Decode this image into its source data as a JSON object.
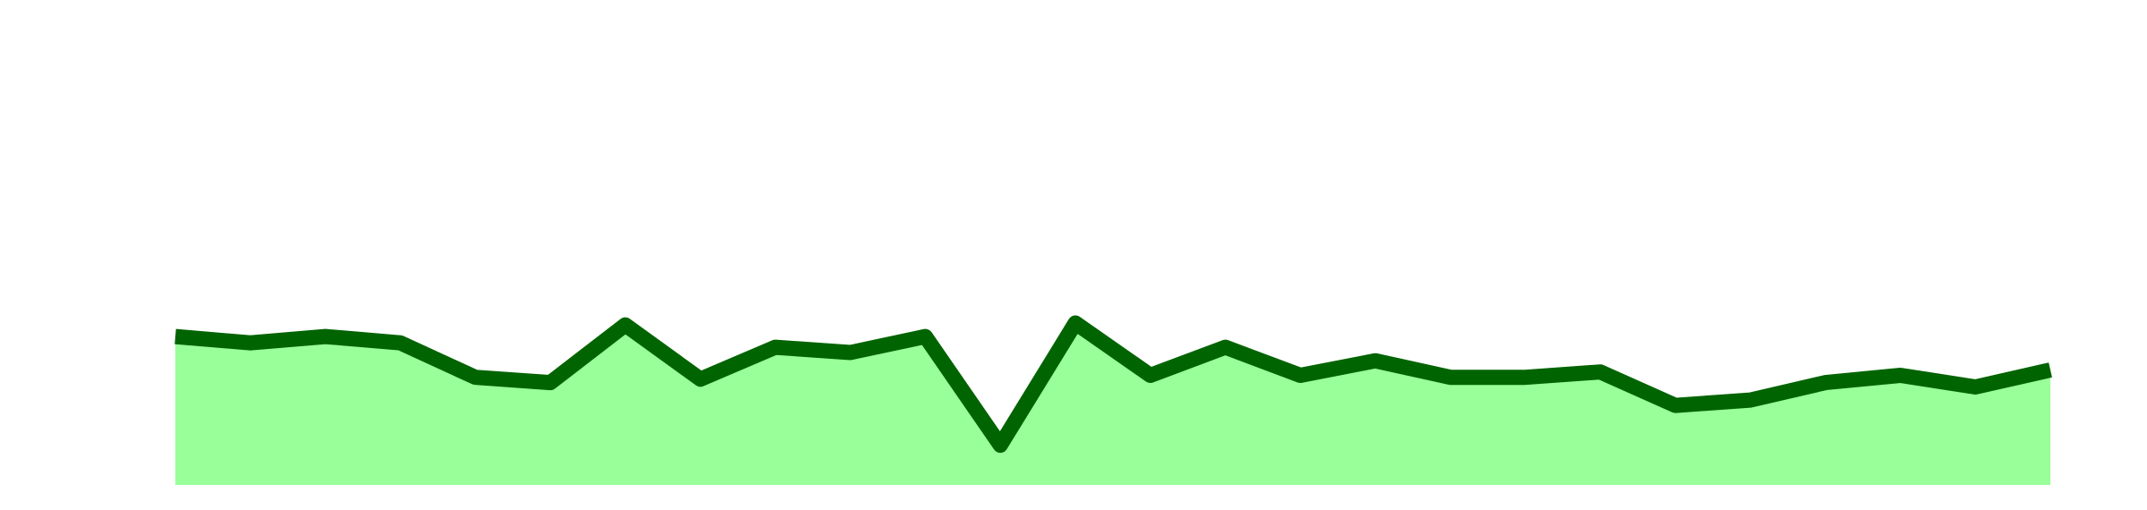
{
  "colors": {
    "background": "#ffffff",
    "area_fill": "#99ff99",
    "line": "#006400"
  },
  "chart_data": {
    "type": "area",
    "title": "",
    "xlabel": "",
    "ylabel": "",
    "grid": false,
    "legend": "none",
    "axes_visible": false,
    "x": [
      0,
      1,
      2,
      3,
      4,
      5,
      6,
      7,
      8,
      9,
      10,
      11,
      12,
      13,
      14,
      15,
      16,
      17,
      18,
      19,
      20,
      21,
      22,
      23,
      24,
      25
    ],
    "ylim": [
      0,
      100
    ],
    "series": [
      {
        "values": [
          30.6,
          29.3,
          30.6,
          29.3,
          22.2,
          21.1,
          33.0,
          21.8,
          28.4,
          27.3,
          30.6,
          8.2,
          33.4,
          22.6,
          28.4,
          22.6,
          25.6,
          22.2,
          22.2,
          23.3,
          16.4,
          17.5,
          21.1,
          22.6,
          20.2,
          23.7
        ]
      }
    ]
  }
}
